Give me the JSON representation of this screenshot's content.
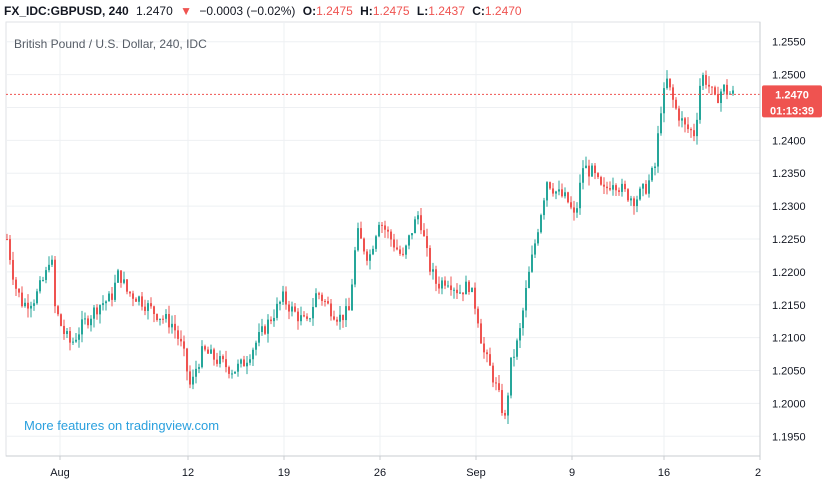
{
  "header": {
    "symbol": "FX_IDC:GBPUSD, 240",
    "last": "1.2470",
    "change": "−0.0003 (−0.02%)",
    "o_label": "O:",
    "o_value": "1.2475",
    "h_label": "H:",
    "h_value": "1.2475",
    "l_label": "L:",
    "l_value": "1.2437",
    "c_label": "C:",
    "c_value": "1.2470"
  },
  "watermark": "More features on tradingview.com",
  "price_tag": {
    "price": "1.2470",
    "countdown": "01:13:39"
  },
  "colors": {
    "up": "#26a69a",
    "down": "#ef5350",
    "tag": "#ef5350",
    "grid": "#eef0f3"
  },
  "chart_data": {
    "type": "candlestick",
    "title": "British Pound / U.S. Dollar, 240, IDC",
    "y_ticks": [
      "1.2550",
      "1.2500",
      "1.2450",
      "1.2400",
      "1.2350",
      "1.2300",
      "1.2250",
      "1.2200",
      "1.2150",
      "1.2100",
      "1.2050",
      "1.2000",
      "1.1950"
    ],
    "y_range": [
      1.192,
      1.258
    ],
    "x_ticks": [
      "Aug",
      "12",
      "19",
      "26",
      "Sep",
      "9",
      "16",
      "2"
    ],
    "last_price": 1.247,
    "close_path": [
      [
        0,
        1.225
      ],
      [
        8,
        1.218
      ],
      [
        16,
        1.215
      ],
      [
        28,
        1.216
      ],
      [
        40,
        1.22
      ],
      [
        44,
        1.224
      ],
      [
        47,
        1.215
      ],
      [
        56,
        1.211
      ],
      [
        64,
        1.209
      ],
      [
        76,
        1.212
      ],
      [
        92,
        1.215
      ],
      [
        104,
        1.216
      ],
      [
        112,
        1.22
      ],
      [
        120,
        1.217
      ],
      [
        132,
        1.216
      ],
      [
        146,
        1.214
      ],
      [
        156,
        1.213
      ],
      [
        166,
        1.212
      ],
      [
        176,
        1.208
      ],
      [
        184,
        1.202
      ],
      [
        188,
        1.205
      ],
      [
        196,
        1.208
      ],
      [
        206,
        1.207
      ],
      [
        216,
        1.206
      ],
      [
        226,
        1.205
      ],
      [
        236,
        1.206
      ],
      [
        244,
        1.208
      ],
      [
        252,
        1.21
      ],
      [
        264,
        1.213
      ],
      [
        276,
        1.216
      ],
      [
        286,
        1.214
      ],
      [
        300,
        1.212
      ],
      [
        310,
        1.217
      ],
      [
        320,
        1.215
      ],
      [
        332,
        1.213
      ],
      [
        342,
        1.214
      ],
      [
        350,
        1.226
      ],
      [
        362,
        1.222
      ],
      [
        372,
        1.228
      ],
      [
        384,
        1.225
      ],
      [
        396,
        1.222
      ],
      [
        404,
        1.226
      ],
      [
        412,
        1.229
      ],
      [
        422,
        1.221
      ],
      [
        430,
        1.218
      ],
      [
        440,
        1.219
      ],
      [
        452,
        1.217
      ],
      [
        462,
        1.218
      ],
      [
        470,
        1.214
      ],
      [
        476,
        1.208
      ],
      [
        484,
        1.205
      ],
      [
        492,
        1.201
      ],
      [
        498,
        1.1975
      ],
      [
        504,
        1.206
      ],
      [
        512,
        1.21
      ],
      [
        520,
        1.218
      ],
      [
        530,
        1.226
      ],
      [
        540,
        1.234
      ],
      [
        550,
        1.232
      ],
      [
        560,
        1.231
      ],
      [
        568,
        1.228
      ],
      [
        576,
        1.236
      ],
      [
        586,
        1.235
      ],
      [
        596,
        1.232
      ],
      [
        606,
        1.234
      ],
      [
        618,
        1.232
      ],
      [
        628,
        1.231
      ],
      [
        640,
        1.233
      ],
      [
        648,
        1.236
      ],
      [
        654,
        1.245
      ],
      [
        660,
        1.249
      ],
      [
        668,
        1.245
      ],
      [
        678,
        1.242
      ],
      [
        688,
        1.241
      ],
      [
        694,
        1.25
      ],
      [
        700,
        1.249
      ],
      [
        708,
        1.246
      ],
      [
        716,
        1.248
      ],
      [
        724,
        1.247
      ],
      [
        732,
        1.247
      ]
    ]
  }
}
